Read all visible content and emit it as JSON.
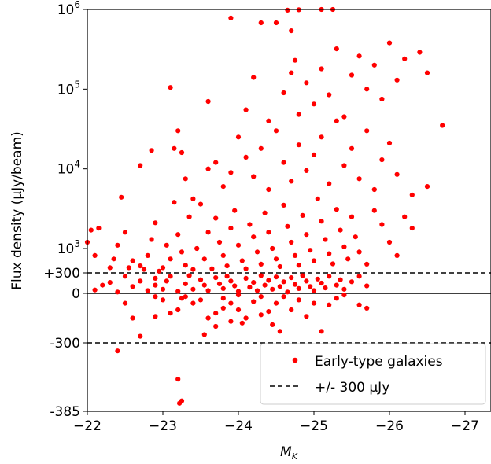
{
  "chart_data": {
    "type": "scatter",
    "xlabel": "M_K",
    "ylabel": "Flux density (μJy/beam)",
    "xlim": [
      -22,
      -27.5
    ],
    "x_ticks": [
      {
        "value": -22,
        "label": "−22"
      },
      {
        "value": -23,
        "label": "−23"
      },
      {
        "value": -24,
        "label": "−24"
      },
      {
        "value": -25,
        "label": "−25"
      },
      {
        "value": -26,
        "label": "−26"
      },
      {
        "value": -27,
        "label": "−27"
      }
    ],
    "y_scale": "symlog (linear between -300 and +300, log above)",
    "y_ticks": [
      {
        "value": 1000000,
        "label_base": "10",
        "label_exp": "6"
      },
      {
        "value": 100000,
        "label_base": "10",
        "label_exp": "5"
      },
      {
        "value": 10000,
        "label_base": "10",
        "label_exp": "4"
      },
      {
        "value": 1000,
        "label_base": "10",
        "label_exp": "3"
      },
      {
        "value": 300,
        "label": "+300"
      },
      {
        "value": 0,
        "label": "0"
      },
      {
        "value": -300,
        "label": "-300"
      },
      {
        "value": -385,
        "label": "-385"
      }
    ],
    "reference_lines": [
      {
        "value": 0,
        "style": "solid"
      },
      {
        "value": 300,
        "style": "dashed"
      },
      {
        "value": -300,
        "style": "dashed"
      }
    ],
    "legend": {
      "placement": "bottom-right",
      "entries": [
        {
          "label": "Early-type galaxies",
          "marker": "dot",
          "color": "#ff0000"
        },
        {
          "label": "+/- 300 μJy",
          "marker": "dashed-line",
          "color": "#000000"
        }
      ]
    },
    "series": [
      {
        "name": "Early-type galaxies",
        "color": "#ff0000",
        "points": [
          [
            -22.4,
            -310
          ],
          [
            -22.7,
            -260
          ],
          [
            -22.5,
            -60
          ],
          [
            -22.6,
            -150
          ],
          [
            -22.9,
            -140
          ],
          [
            -22.9,
            -20
          ],
          [
            -23.0,
            -40
          ],
          [
            -23.1,
            -120
          ],
          [
            -23.2,
            -100
          ],
          [
            -23.25,
            -30
          ],
          [
            -23.3,
            -20
          ],
          [
            -23.4,
            -60
          ],
          [
            -23.5,
            -40
          ],
          [
            -23.55,
            -250
          ],
          [
            -23.6,
            -150
          ],
          [
            -23.7,
            -200
          ],
          [
            -23.7,
            -120
          ],
          [
            -23.8,
            -90
          ],
          [
            -23.8,
            -30
          ],
          [
            -23.9,
            -170
          ],
          [
            -23.9,
            -60
          ],
          [
            -24.0,
            -10
          ],
          [
            -24.0,
            -100
          ],
          [
            -24.05,
            -180
          ],
          [
            -24.1,
            -150
          ],
          [
            -24.2,
            -50
          ],
          [
            -24.3,
            -130
          ],
          [
            -24.3,
            -20
          ],
          [
            -24.4,
            -110
          ],
          [
            -24.45,
            -190
          ],
          [
            -24.5,
            -60
          ],
          [
            -24.55,
            -230
          ],
          [
            -24.6,
            -20
          ],
          [
            -24.7,
            -100
          ],
          [
            -24.8,
            -40
          ],
          [
            -24.9,
            -140
          ],
          [
            -25.0,
            -60
          ],
          [
            -25.1,
            -230
          ],
          [
            -25.2,
            -70
          ],
          [
            -25.3,
            -30
          ],
          [
            -25.4,
            -10
          ],
          [
            -25.6,
            -70
          ],
          [
            -25.7,
            -90
          ],
          [
            -23.2,
            -345
          ],
          [
            -23.25,
            -372
          ],
          [
            -23.22,
            -375
          ],
          [
            -22.1,
            50
          ],
          [
            -22.2,
            120
          ],
          [
            -22.3,
            160
          ],
          [
            -22.4,
            20
          ],
          [
            -22.5,
            250
          ],
          [
            -22.6,
            100
          ],
          [
            -22.7,
            180
          ],
          [
            -22.8,
            40
          ],
          [
            -22.9,
            220
          ],
          [
            -22.9,
            120
          ],
          [
            -23.0,
            60
          ],
          [
            -23.05,
            180
          ],
          [
            -23.1,
            250
          ],
          [
            -23.2,
            30
          ],
          [
            -23.3,
            140
          ],
          [
            -23.35,
            260
          ],
          [
            -23.4,
            60
          ],
          [
            -23.5,
            200
          ],
          [
            -23.55,
            120
          ],
          [
            -23.6,
            40
          ],
          [
            -23.7,
            230
          ],
          [
            -23.75,
            140
          ],
          [
            -23.8,
            70
          ],
          [
            -23.85,
            250
          ],
          [
            -23.9,
            180
          ],
          [
            -23.95,
            110
          ],
          [
            -24.0,
            30
          ],
          [
            -24.1,
            220
          ],
          [
            -24.15,
            90
          ],
          [
            -24.2,
            160
          ],
          [
            -24.25,
            40
          ],
          [
            -24.3,
            260
          ],
          [
            -24.35,
            120
          ],
          [
            -24.4,
            190
          ],
          [
            -24.45,
            60
          ],
          [
            -24.5,
            240
          ],
          [
            -24.55,
            100
          ],
          [
            -24.6,
            170
          ],
          [
            -24.65,
            20
          ],
          [
            -24.7,
            230
          ],
          [
            -24.75,
            130
          ],
          [
            -24.8,
            70
          ],
          [
            -24.85,
            260
          ],
          [
            -24.9,
            180
          ],
          [
            -24.95,
            100
          ],
          [
            -25.0,
            40
          ],
          [
            -25.05,
            210
          ],
          [
            -25.1,
            150
          ],
          [
            -25.15,
            80
          ],
          [
            -25.2,
            250
          ],
          [
            -25.3,
            120
          ],
          [
            -25.35,
            200
          ],
          [
            -25.4,
            60
          ],
          [
            -25.5,
            170
          ],
          [
            -25.6,
            250
          ],
          [
            -25.7,
            110
          ],
          [
            -22.0,
            1200
          ],
          [
            -22.05,
            1700
          ],
          [
            -22.1,
            800
          ],
          [
            -22.15,
            1800
          ],
          [
            -22.3,
            450
          ],
          [
            -22.35,
            700
          ],
          [
            -22.4,
            1100
          ],
          [
            -22.45,
            4400
          ],
          [
            -22.5,
            1600
          ],
          [
            -22.55,
            450
          ],
          [
            -22.6,
            650
          ],
          [
            -22.7,
            500
          ],
          [
            -22.75,
            400
          ],
          [
            -22.8,
            800
          ],
          [
            -22.85,
            1300
          ],
          [
            -22.9,
            2100
          ],
          [
            -22.95,
            350
          ],
          [
            -23.0,
            450
          ],
          [
            -23.05,
            1100
          ],
          [
            -23.1,
            700
          ],
          [
            -23.15,
            3800
          ],
          [
            -23.2,
            1500
          ],
          [
            -23.25,
            900
          ],
          [
            -23.3,
            520
          ],
          [
            -23.35,
            2500
          ],
          [
            -23.4,
            400
          ],
          [
            -23.45,
            1000
          ],
          [
            -23.5,
            3600
          ],
          [
            -23.55,
            700
          ],
          [
            -23.6,
            1600
          ],
          [
            -23.65,
            420
          ],
          [
            -23.7,
            2400
          ],
          [
            -23.75,
            1200
          ],
          [
            -23.8,
            800
          ],
          [
            -23.85,
            500
          ],
          [
            -23.9,
            1800
          ],
          [
            -23.95,
            3000
          ],
          [
            -24.0,
            1100
          ],
          [
            -24.05,
            650
          ],
          [
            -24.1,
            420
          ],
          [
            -24.15,
            2000
          ],
          [
            -24.2,
            1400
          ],
          [
            -24.25,
            900
          ],
          [
            -24.3,
            550
          ],
          [
            -24.35,
            2800
          ],
          [
            -24.4,
            1600
          ],
          [
            -24.45,
            1000
          ],
          [
            -24.5,
            700
          ],
          [
            -24.55,
            480
          ],
          [
            -24.6,
            3500
          ],
          [
            -24.65,
            1900
          ],
          [
            -24.7,
            1200
          ],
          [
            -24.75,
            800
          ],
          [
            -24.8,
            520
          ],
          [
            -24.85,
            2600
          ],
          [
            -24.9,
            1500
          ],
          [
            -24.95,
            950
          ],
          [
            -25.0,
            650
          ],
          [
            -25.05,
            4200
          ],
          [
            -25.1,
            2200
          ],
          [
            -25.15,
            1300
          ],
          [
            -25.2,
            850
          ],
          [
            -25.25,
            560
          ],
          [
            -25.3,
            3100
          ],
          [
            -25.35,
            1700
          ],
          [
            -25.4,
            1050
          ],
          [
            -25.45,
            700
          ],
          [
            -25.5,
            2500
          ],
          [
            -25.55,
            1400
          ],
          [
            -25.6,
            900
          ],
          [
            -25.7,
            550
          ],
          [
            -25.8,
            3000
          ],
          [
            -25.9,
            2000
          ],
          [
            -26.0,
            1200
          ],
          [
            -26.1,
            800
          ],
          [
            -26.2,
            2500
          ],
          [
            -26.3,
            1800
          ],
          [
            -22.7,
            11000
          ],
          [
            -22.85,
            17000
          ],
          [
            -23.15,
            18000
          ],
          [
            -23.2,
            30000
          ],
          [
            -23.25,
            16000
          ],
          [
            -23.3,
            7500
          ],
          [
            -23.4,
            4200
          ],
          [
            -23.6,
            10000
          ],
          [
            -23.7,
            12000
          ],
          [
            -23.8,
            6000
          ],
          [
            -23.9,
            9000
          ],
          [
            -24.0,
            25000
          ],
          [
            -24.1,
            14000
          ],
          [
            -24.2,
            8000
          ],
          [
            -24.3,
            18000
          ],
          [
            -24.4,
            5500
          ],
          [
            -24.5,
            30000
          ],
          [
            -24.6,
            12000
          ],
          [
            -24.7,
            7000
          ],
          [
            -24.8,
            20000
          ],
          [
            -24.9,
            9500
          ],
          [
            -25.0,
            15000
          ],
          [
            -25.1,
            25000
          ],
          [
            -25.2,
            6500
          ],
          [
            -25.3,
            40000
          ],
          [
            -25.4,
            11000
          ],
          [
            -25.5,
            18000
          ],
          [
            -25.6,
            7500
          ],
          [
            -25.7,
            30000
          ],
          [
            -25.8,
            5500
          ],
          [
            -25.9,
            13000
          ],
          [
            -26.0,
            21000
          ],
          [
            -26.1,
            8500
          ],
          [
            -26.3,
            4700
          ],
          [
            -26.5,
            6000
          ],
          [
            -26.7,
            35000
          ],
          [
            -23.1,
            105000
          ],
          [
            -23.6,
            70000
          ],
          [
            -24.1,
            55000
          ],
          [
            -24.2,
            140000
          ],
          [
            -24.4,
            40000
          ],
          [
            -24.6,
            90000
          ],
          [
            -24.7,
            160000
          ],
          [
            -24.75,
            230000
          ],
          [
            -24.8,
            48000
          ],
          [
            -24.9,
            120000
          ],
          [
            -25.0,
            65000
          ],
          [
            -25.1,
            180000
          ],
          [
            -25.2,
            85000
          ],
          [
            -25.3,
            320000
          ],
          [
            -25.4,
            45000
          ],
          [
            -25.5,
            150000
          ],
          [
            -25.6,
            260000
          ],
          [
            -25.7,
            100000
          ],
          [
            -25.8,
            200000
          ],
          [
            -25.9,
            75000
          ],
          [
            -26.0,
            380000
          ],
          [
            -26.1,
            130000
          ],
          [
            -26.2,
            240000
          ],
          [
            -26.4,
            290000
          ],
          [
            -26.5,
            160000
          ],
          [
            -23.9,
            780000
          ],
          [
            -24.3,
            680000
          ],
          [
            -24.5,
            680000
          ],
          [
            -24.7,
            540000
          ],
          [
            -24.8,
            990000
          ],
          [
            -24.65,
            980000
          ],
          [
            -25.1,
            1000000
          ],
          [
            -25.25,
            1000000
          ]
        ]
      }
    ]
  }
}
